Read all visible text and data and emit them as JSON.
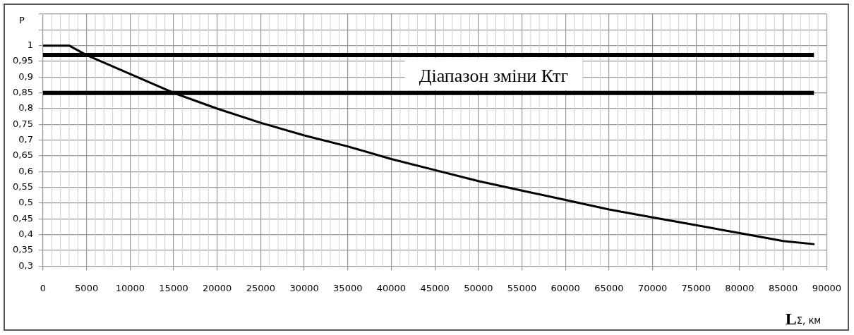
{
  "chart_data": {
    "type": "line",
    "xlabel": "L$_{Σ, км}$",
    "ylabel": "P",
    "series": [
      {
        "color": "#000000",
        "x": [
          0,
          3000,
          5000,
          10000,
          15000,
          20000,
          25000,
          30000,
          35000,
          40000,
          45000,
          50000,
          55000,
          60000,
          65000,
          70000,
          75000,
          80000,
          85000,
          88500
        ],
        "values": [
          1,
          1,
          0.97,
          0.91,
          0.85,
          0.8,
          0.755,
          0.715,
          0.68,
          0.64,
          0.605,
          0.57,
          0.54,
          0.51,
          0.48,
          0.455,
          0.43,
          0.405,
          0.38,
          0.37
        ]
      }
    ],
    "xlim": [
      0,
      90000
    ],
    "xticks": [
      0,
      5000,
      10000,
      15000,
      20000,
      25000,
      30000,
      35000,
      40000,
      45000,
      50000,
      55000,
      60000,
      65000,
      70000,
      75000,
      80000,
      85000,
      90000
    ],
    "ylim": [
      0.3,
      1.1
    ],
    "yticks": [
      {
        "value": 0.3,
        "label": "0,3"
      },
      {
        "value": 0.35,
        "label": "0,35"
      },
      {
        "value": 0.4,
        "label": "0,4"
      },
      {
        "value": 0.45,
        "label": "0,45"
      },
      {
        "value": 0.5,
        "label": "0,5"
      },
      {
        "value": 0.55,
        "label": "0,55"
      },
      {
        "value": 0.6,
        "label": "0,6"
      },
      {
        "value": 0.65,
        "label": "0,65"
      },
      {
        "value": 0.7,
        "label": "0,7"
      },
      {
        "value": 0.75,
        "label": "0,75"
      },
      {
        "value": 0.8,
        "label": "0,8"
      },
      {
        "value": 0.85,
        "label": "0,85"
      },
      {
        "value": 0.9,
        "label": "0,9"
      },
      {
        "value": 0.95,
        "label": "0,95"
      },
      {
        "value": 1,
        "label": "1"
      },
      {
        "value": 1.05,
        "label": null
      },
      {
        "value": 1.1,
        "label": null
      }
    ],
    "ref_lines": [
      {
        "axis": "y",
        "value": 0.97,
        "color": "#000000"
      },
      {
        "axis": "y",
        "value": 0.85,
        "color": "#000000"
      }
    ],
    "annotations": [
      "Діапазон зміни Ктг"
    ],
    "grid": true,
    "legend": false,
    "marker": "none",
    "line_style": "solid"
  }
}
